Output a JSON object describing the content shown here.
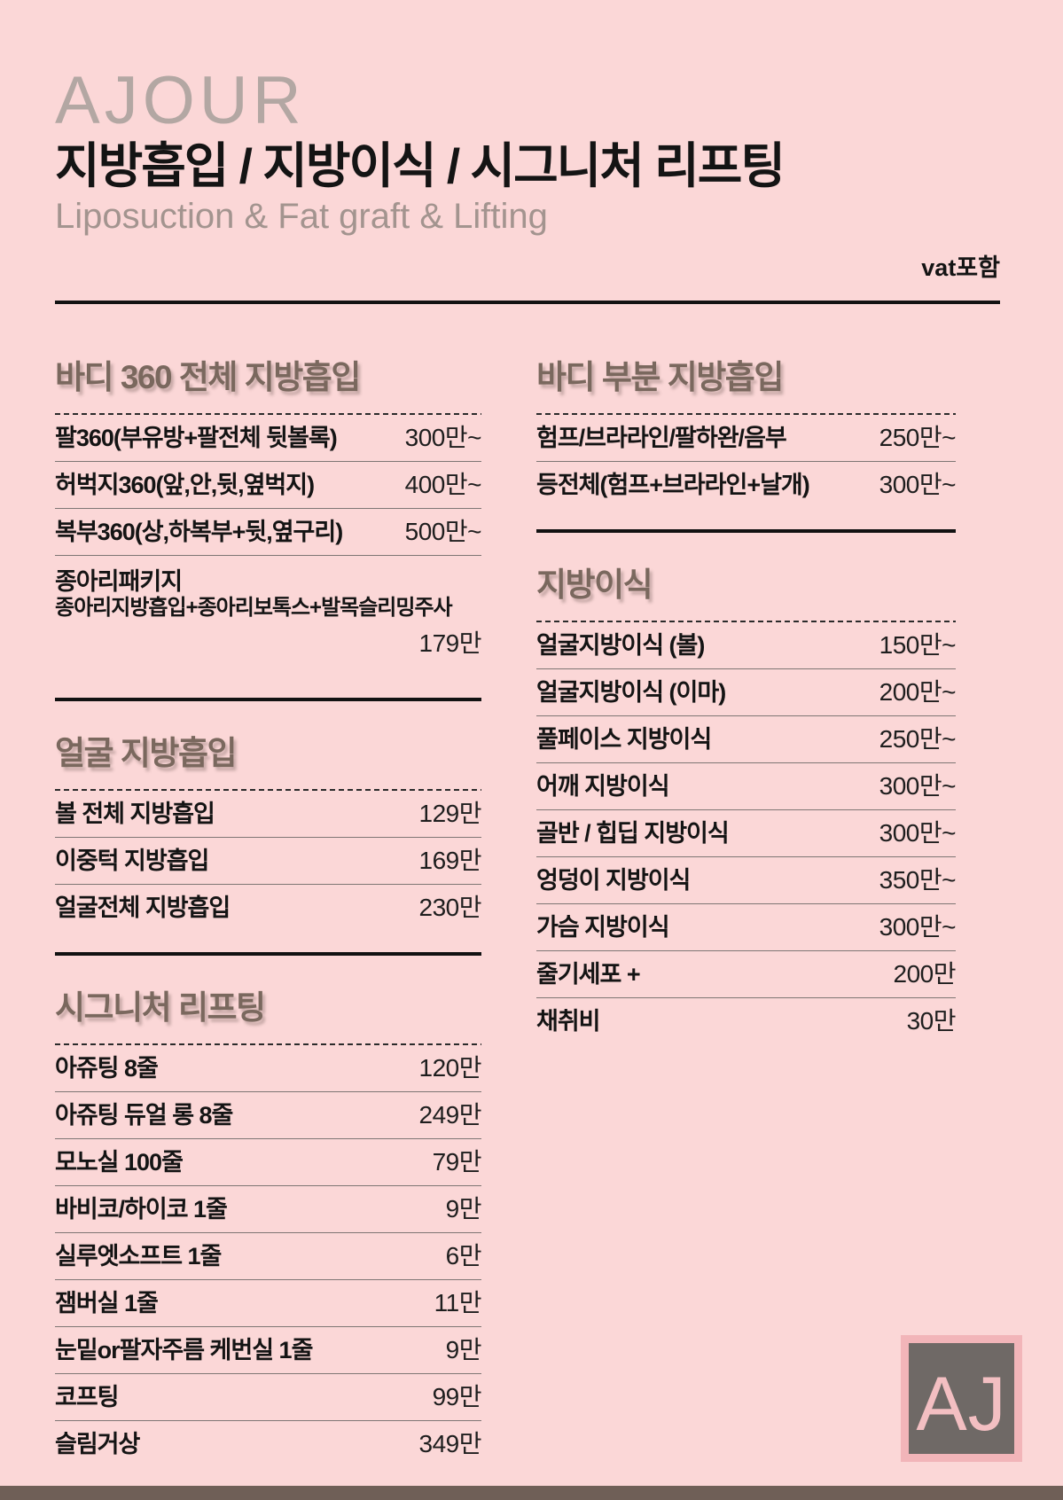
{
  "header": {
    "brand": "AJOUR",
    "title": "지방흡입 / 지방이식 / 시그니처 리프팅",
    "subtitle": "Liposuction & Fat graft & Lifting",
    "vat_note": "vat포함"
  },
  "columns": {
    "left": {
      "sections": [
        {
          "title": "바디 360 전체 지방흡입",
          "items": [
            {
              "name": "팔360(부유방+팔전체 뒷볼록)",
              "price": "300만~"
            },
            {
              "name": "허벅지360(앞,안,뒷,옆벅지)",
              "price": "400만~"
            },
            {
              "name": "복부360(상,하복부+뒷,옆구리)",
              "price": "500만~"
            },
            {
              "name": "종아리패키지",
              "sub": "종아리지방흡입+종아리보톡스+발목슬리밍주사",
              "price": "179만",
              "block": true
            }
          ]
        },
        {
          "title": "얼굴 지방흡입",
          "items": [
            {
              "name": "볼 전체 지방흡입",
              "price": "129만"
            },
            {
              "name": "이중턱 지방흡입",
              "price": "169만"
            },
            {
              "name": "얼굴전체 지방흡입",
              "price": "230만"
            }
          ]
        },
        {
          "title": "시그니처 리프팅",
          "items": [
            {
              "name": "아쥬팅 8줄",
              "price": "120만"
            },
            {
              "name": "아쥬팅 듀얼 롱 8줄",
              "price": "249만"
            },
            {
              "name": "모노실 100줄",
              "price": "79만"
            },
            {
              "name": "바비코/하이코 1줄",
              "price": "9만"
            },
            {
              "name": "실루엣소프트 1줄",
              "price": "6만"
            },
            {
              "name": "잼버실 1줄",
              "price": "11만"
            },
            {
              "name": "눈밑or팔자주름 케번실 1줄",
              "price": "9만"
            },
            {
              "name": "코프팅",
              "price": "99만"
            },
            {
              "name": "슬림거상",
              "price": "349만"
            }
          ]
        }
      ]
    },
    "right": {
      "sections": [
        {
          "title": "바디 부분 지방흡입",
          "items": [
            {
              "name": "험프/브라라인/팔하완/음부",
              "price": "250만~"
            },
            {
              "name": "등전체(험프+브라라인+날개)",
              "price": "300만~"
            }
          ]
        },
        {
          "title": "지방이식",
          "items": [
            {
              "name": "얼굴지방이식 (볼)",
              "price": "150만~"
            },
            {
              "name": "얼굴지방이식 (이마)",
              "price": "200만~"
            },
            {
              "name": "풀페이스 지방이식",
              "price": "250만~"
            },
            {
              "name": "어깨 지방이식",
              "price": "300만~"
            },
            {
              "name": "골반 / 힙딥 지방이식",
              "price": "300만~"
            },
            {
              "name": "엉덩이 지방이식",
              "price": "350만~"
            },
            {
              "name": "가슴 지방이식",
              "price": "300만~"
            },
            {
              "name": "줄기세포 +",
              "price": "200만"
            },
            {
              "name": "채취비",
              "price": "30만"
            }
          ]
        }
      ]
    }
  },
  "footer": {
    "logo_text": "AJ"
  },
  "colors": {
    "background": "#fbd7d7",
    "section_title": "#7a685e",
    "brand": "#b3a7a3",
    "subtitle": "#a3948f",
    "text": "#141414",
    "divider": "#7e7674",
    "footer_bar": "#6f5f57",
    "logo_background": "#6f6966",
    "logo_border": "#f2b5b9",
    "logo_text": "#f3bfc2"
  }
}
